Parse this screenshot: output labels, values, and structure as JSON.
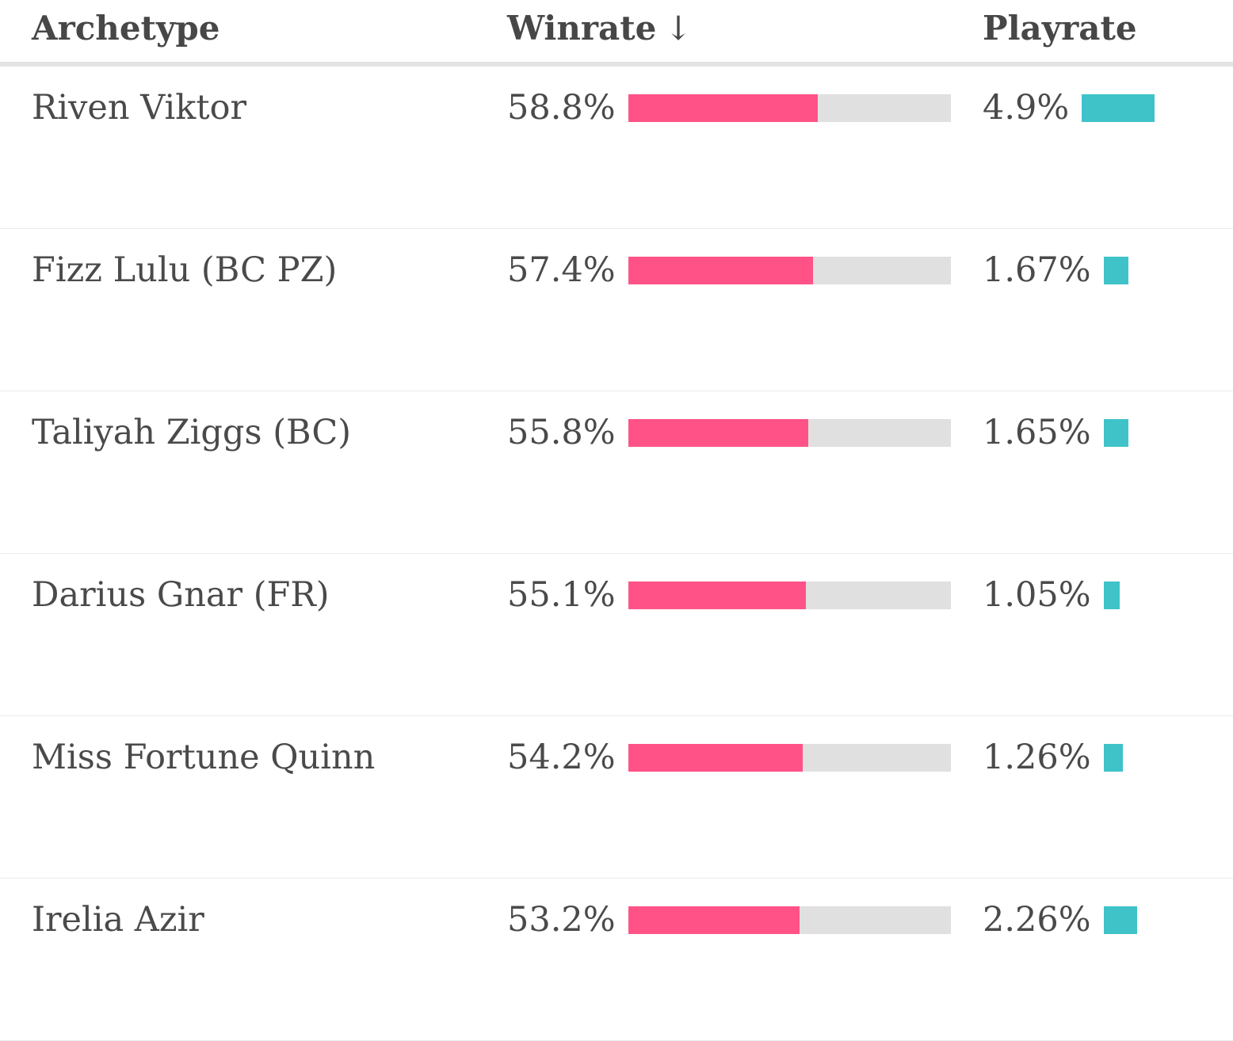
{
  "header": {
    "archetype": "Archetype",
    "winrate": "Winrate",
    "winrate_sort_arrow": "↓",
    "playrate": "Playrate"
  },
  "colors": {
    "winrate_bar": "#ff5387",
    "winrate_track": "#e0e0e0",
    "playrate_bar": "#3fc3c9",
    "text": "#474747"
  },
  "rows": [
    {
      "name": "Riven Viktor",
      "winrate": "58.8%",
      "winrate_value": 58.8,
      "playrate": "4.9%",
      "playrate_value": 4.9
    },
    {
      "name": "Fizz Lulu (BC PZ)",
      "winrate": "57.4%",
      "winrate_value": 57.4,
      "playrate": "1.67%",
      "playrate_value": 1.67
    },
    {
      "name": "Taliyah Ziggs (BC)",
      "winrate": "55.8%",
      "winrate_value": 55.8,
      "playrate": "1.65%",
      "playrate_value": 1.65
    },
    {
      "name": "Darius Gnar (FR)",
      "winrate": "55.1%",
      "winrate_value": 55.1,
      "playrate": "1.05%",
      "playrate_value": 1.05
    },
    {
      "name": "Miss Fortune Quinn",
      "winrate": "54.2%",
      "winrate_value": 54.2,
      "playrate": "1.26%",
      "playrate_value": 1.26
    },
    {
      "name": "Irelia Azir",
      "winrate": "53.2%",
      "winrate_value": 53.2,
      "playrate": "2.26%",
      "playrate_value": 2.26
    }
  ]
}
